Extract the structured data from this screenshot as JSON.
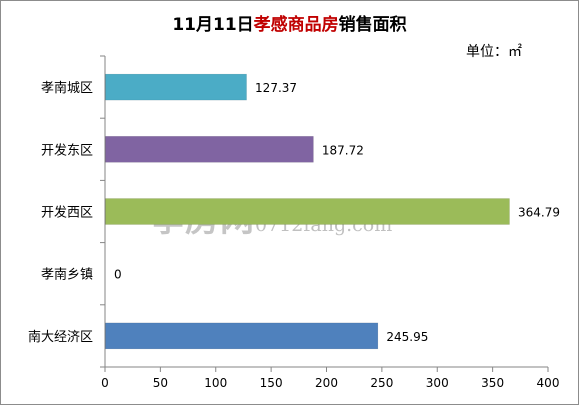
{
  "title": {
    "prefix": "11月11日",
    "highlight": "孝感商品房",
    "suffix": "销售面积"
  },
  "unit_label": "单位：㎡",
  "watermark": {
    "brand": "孝房网",
    "url": "0712fang.com"
  },
  "chart_data": {
    "type": "bar",
    "orientation": "horizontal",
    "categories": [
      "孝南城区",
      "开发东区",
      "开发西区",
      "孝南乡镇",
      "南大经济区"
    ],
    "values": [
      127.37,
      187.72,
      364.79,
      0,
      245.95
    ],
    "value_labels": [
      "127.37",
      "187.72",
      "364.79",
      "0",
      "245.95"
    ],
    "colors": [
      "#4bacc6",
      "#8064a2",
      "#9bbb59",
      "#4f81bd",
      "#4f81bd"
    ],
    "xlim": [
      0,
      400
    ],
    "xticks": [
      0,
      50,
      100,
      150,
      200,
      250,
      300,
      350,
      400
    ],
    "title": "11月11日孝感商品房销售面积",
    "xlabel": "",
    "ylabel": "",
    "grid": false,
    "legend": "none"
  }
}
